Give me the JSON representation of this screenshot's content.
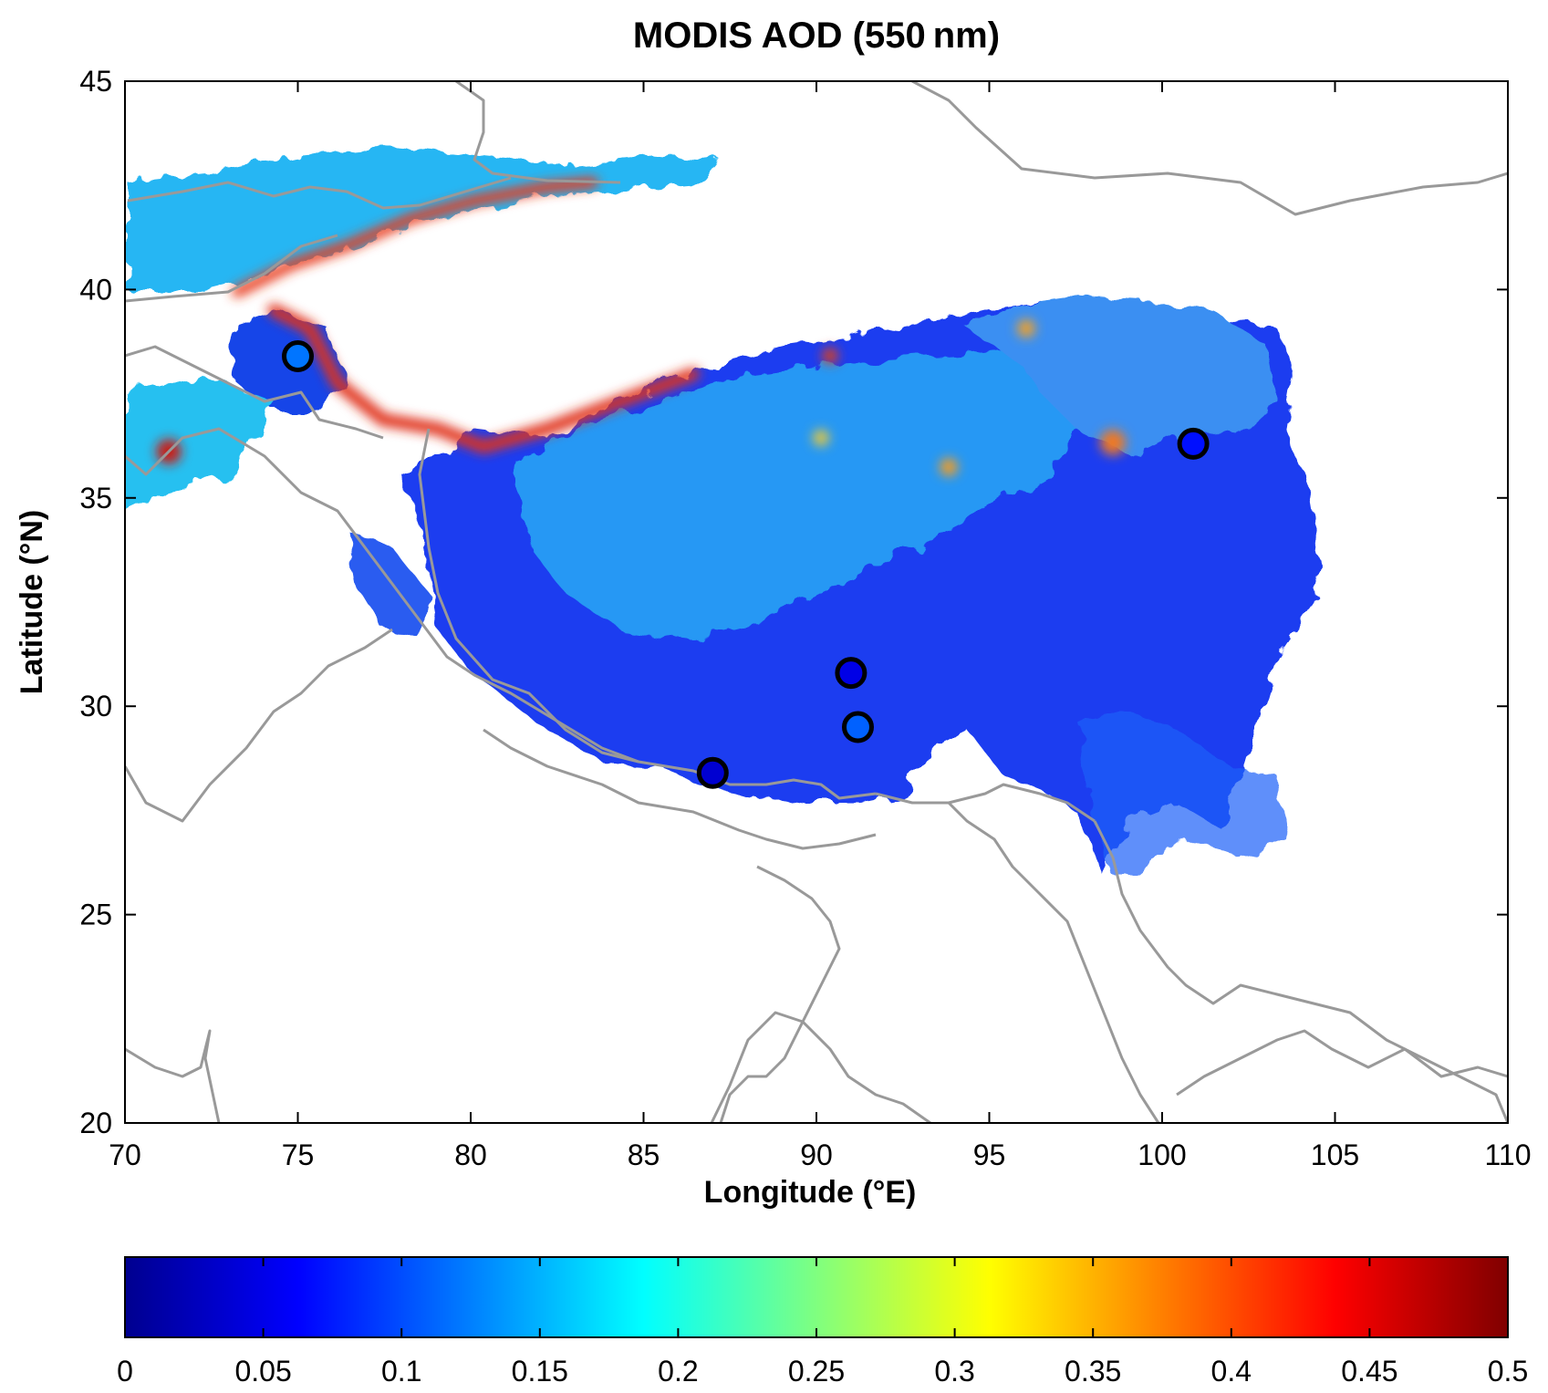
{
  "chart_data": {
    "type": "heatmap",
    "title": "MODIS AOD (550 nm)",
    "xlabel": "Longitude (°E)",
    "ylabel": "Latitude (°N)",
    "xlim": [
      70,
      110
    ],
    "ylim": [
      20,
      45
    ],
    "xticks": [
      "70",
      "75",
      "80",
      "85",
      "90",
      "95",
      "100",
      "105",
      "110"
    ],
    "yticks": [
      "20",
      "25",
      "30",
      "35",
      "40",
      "45"
    ],
    "colorbar": {
      "colormap": "jet",
      "range": [
        0,
        0.5
      ],
      "ticks": [
        "0",
        "0.05",
        "0.1",
        "0.15",
        "0.2",
        "0.25",
        "0.3",
        "0.35",
        "0.4",
        "0.45",
        "0.5"
      ]
    },
    "stations": [
      {
        "lon": 75.0,
        "lat": 38.4,
        "aod": 0.12
      },
      {
        "lon": 100.9,
        "lat": 36.3,
        "aod": 0.07
      },
      {
        "lon": 91.0,
        "lat": 30.8,
        "aod": 0.05
      },
      {
        "lon": 91.2,
        "lat": 29.5,
        "aod": 0.11
      },
      {
        "lon": 87.0,
        "lat": 28.4,
        "aod": 0.04
      }
    ],
    "boundary_color": "#999999",
    "grid": false
  }
}
